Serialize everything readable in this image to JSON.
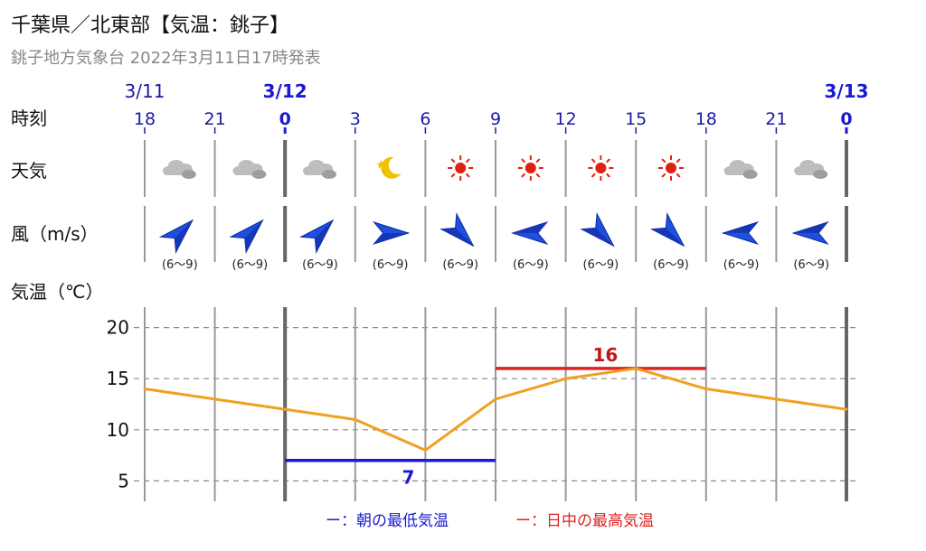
{
  "header": {
    "title": "千葉県／北東部【気温：銚子】",
    "subtitle": "銚子地方気象台 2022年3月11日17時発表"
  },
  "rows": {
    "time_label": "時刻",
    "weather_label": "天気",
    "wind_label": "風（m/s）",
    "temp_label": "気温（℃）"
  },
  "dates": [
    {
      "text": "3/11",
      "col": 0,
      "bold": false
    },
    {
      "text": "3/12",
      "col": 2,
      "bold": true
    },
    {
      "text": "3/13",
      "col": 10,
      "bold": true
    }
  ],
  "colors": {
    "line": "#f0a020",
    "min_bar": "#1a1ad0",
    "max_bar": "#e02020",
    "grid": "#888888",
    "day_divider": "#666666",
    "wind_arrow": "#1f4fe0"
  },
  "chart_data": {
    "type": "line",
    "x": [
      "18",
      "21",
      "0",
      "3",
      "6",
      "9",
      "12",
      "15",
      "18",
      "21",
      "0"
    ],
    "values": [
      14,
      13,
      12,
      11,
      8,
      13,
      15,
      16,
      14,
      13,
      12
    ],
    "ylim": [
      3,
      22
    ],
    "yticks": [
      5,
      10,
      15,
      20
    ],
    "bold_ticks": [
      2,
      10
    ],
    "weather": [
      "cloudy-icon",
      "cloudy-icon",
      "cloudy-icon",
      "moon-clear-icon",
      "sun-icon",
      "sun-icon",
      "sun-icon",
      "sun-icon",
      "cloudy-icon",
      "cloudy-icon"
    ],
    "wind": [
      {
        "dir": "southwest",
        "range": "(6〜9)"
      },
      {
        "dir": "southwest",
        "range": "(6〜9)"
      },
      {
        "dir": "southwest",
        "range": "(6〜9)"
      },
      {
        "dir": "west",
        "range": "(6〜9)"
      },
      {
        "dir": "northwest",
        "range": "(6〜9)"
      },
      {
        "dir": "east",
        "range": "(6〜9)"
      },
      {
        "dir": "northwest",
        "range": "(6〜9)"
      },
      {
        "dir": "northwest",
        "range": "(6〜9)"
      },
      {
        "dir": "east",
        "range": "(6〜9)"
      },
      {
        "dir": "east",
        "range": "(6〜9)"
      }
    ],
    "min_temp": {
      "value": 7,
      "label": "7",
      "from_index": 2,
      "to_index": 5
    },
    "max_temp": {
      "value": 16,
      "label": "16",
      "from_index": 5,
      "to_index": 8
    },
    "legend": [
      {
        "text": "ー：朝の最低気温",
        "color": "#1a1ad0"
      },
      {
        "text": "ー：日中の最高気温",
        "color": "#e02020"
      }
    ]
  }
}
